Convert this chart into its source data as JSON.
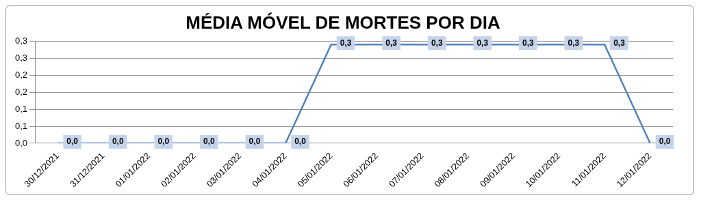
{
  "chart_data": {
    "type": "line",
    "title": "MÉDIA MÓVEL DE MORTES POR DIA",
    "categories": [
      "30/12/2021",
      "31/12/2021",
      "01/01/2022",
      "02/01/2022",
      "03/01/2022",
      "04/01/2022",
      "05/01/2022",
      "06/01/2022",
      "07/01/2022",
      "08/01/2022",
      "09/01/2022",
      "10/01/2022",
      "11/01/2022",
      "12/01/2022"
    ],
    "series": [
      {
        "color": "#4f81bd",
        "values": [
          0,
          0,
          0,
          0,
          0,
          0,
          0.29,
          0.29,
          0.29,
          0.29,
          0.29,
          0.29,
          0.29,
          0
        ],
        "value_labels": [
          "0,0",
          "0,0",
          "0,0",
          "0,0",
          "0,0",
          "0,0",
          "0,3",
          "0,3",
          "0,3",
          "0,3",
          "0,3",
          "0,3",
          "0,3",
          "0,0"
        ]
      }
    ],
    "ylim": [
      0,
      0.3
    ],
    "yticks": [
      {
        "value": 0,
        "label": "0,0"
      },
      {
        "value": 0.05,
        "label": "0,1"
      },
      {
        "value": 0.1,
        "label": "0,1"
      },
      {
        "value": 0.15,
        "label": "0,2"
      },
      {
        "value": 0.2,
        "label": "0,2"
      },
      {
        "value": 0.25,
        "label": "0,3"
      },
      {
        "value": 0.3,
        "label": "0,3"
      }
    ],
    "grid": "y",
    "legend": false,
    "marker": "none",
    "line_style": "solid"
  }
}
